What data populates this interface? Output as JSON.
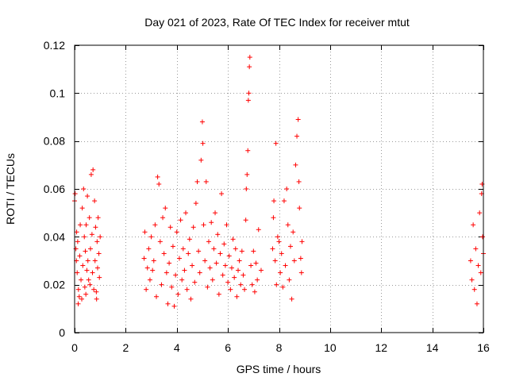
{
  "chart_data": {
    "type": "scatter",
    "title": "Day 021 of 2023, Rate Of TEC Index for receiver mtut",
    "xlabel": "GPS time / hours",
    "ylabel": "ROTI / TECUs",
    "xlim": [
      0,
      16
    ],
    "ylim": [
      0,
      0.12
    ],
    "grid": true,
    "marker": "+",
    "marker_color": "#ff0000",
    "x_ticks": [
      0,
      2,
      4,
      6,
      8,
      10,
      12,
      14,
      16
    ],
    "x_tick_labels": [
      "0",
      "2",
      "4",
      "6",
      "8",
      "10",
      "12",
      "14",
      "16"
    ],
    "y_ticks": [
      0,
      0.02,
      0.04,
      0.06,
      0.08,
      0.1,
      0.12
    ],
    "y_tick_labels": [
      "0",
      "0.02",
      "0.04",
      "0.06",
      "0.08",
      "0.1",
      "0.12"
    ],
    "series": [
      {
        "name": "ROTI",
        "points": [
          [
            0.0,
            0.055
          ],
          [
            0.02,
            0.058
          ],
          [
            0.05,
            0.035
          ],
          [
            0.07,
            0.03
          ],
          [
            0.08,
            0.042
          ],
          [
            0.1,
            0.025
          ],
          [
            0.12,
            0.038
          ],
          [
            0.15,
            0.018
          ],
          [
            0.18,
            0.015
          ],
          [
            0.2,
            0.032
          ],
          [
            0.22,
            0.045
          ],
          [
            0.25,
            0.022
          ],
          [
            0.28,
            0.014
          ],
          [
            0.3,
            0.052
          ],
          [
            0.32,
            0.028
          ],
          [
            0.35,
            0.06
          ],
          [
            0.38,
            0.04
          ],
          [
            0.4,
            0.019
          ],
          [
            0.42,
            0.034
          ],
          [
            0.45,
            0.045
          ],
          [
            0.48,
            0.026
          ],
          [
            0.5,
            0.057
          ],
          [
            0.52,
            0.03
          ],
          [
            0.55,
            0.022
          ],
          [
            0.58,
            0.048
          ],
          [
            0.6,
            0.02
          ],
          [
            0.62,
            0.035
          ],
          [
            0.65,
            0.066
          ],
          [
            0.68,
            0.041
          ],
          [
            0.7,
            0.025
          ],
          [
            0.72,
            0.068
          ],
          [
            0.75,
            0.018
          ],
          [
            0.78,
            0.055
          ],
          [
            0.8,
            0.03
          ],
          [
            0.82,
            0.044
          ],
          [
            0.85,
            0.017
          ],
          [
            0.88,
            0.038
          ],
          [
            0.9,
            0.027
          ],
          [
            0.92,
            0.048
          ],
          [
            0.95,
            0.033
          ],
          [
            0.97,
            0.023
          ],
          [
            1.0,
            0.04
          ],
          [
            0.14,
            0.012
          ],
          [
            0.44,
            0.016
          ],
          [
            0.86,
            0.014
          ],
          [
            2.72,
            0.031
          ],
          [
            2.75,
            0.042
          ],
          [
            2.8,
            0.018
          ],
          [
            2.85,
            0.027
          ],
          [
            2.9,
            0.035
          ],
          [
            2.95,
            0.022
          ],
          [
            3.0,
            0.04
          ],
          [
            3.05,
            0.026
          ],
          [
            3.1,
            0.03
          ],
          [
            3.15,
            0.045
          ],
          [
            3.2,
            0.015
          ],
          [
            3.25,
            0.065
          ],
          [
            3.3,
            0.062
          ],
          [
            3.35,
            0.038
          ],
          [
            3.4,
            0.02
          ],
          [
            3.45,
            0.048
          ],
          [
            3.5,
            0.033
          ],
          [
            3.55,
            0.052
          ],
          [
            3.6,
            0.025
          ],
          [
            3.65,
            0.012
          ],
          [
            3.7,
            0.029
          ],
          [
            3.75,
            0.044
          ],
          [
            3.8,
            0.019
          ],
          [
            3.85,
            0.036
          ],
          [
            3.9,
            0.011
          ],
          [
            3.95,
            0.024
          ],
          [
            4.0,
            0.042
          ],
          [
            4.05,
            0.016
          ],
          [
            4.1,
            0.031
          ],
          [
            4.15,
            0.047
          ],
          [
            4.2,
            0.022
          ],
          [
            4.25,
            0.035
          ],
          [
            4.3,
            0.026
          ],
          [
            4.35,
            0.05
          ],
          [
            4.4,
            0.018
          ],
          [
            4.45,
            0.033
          ],
          [
            4.5,
            0.039
          ],
          [
            4.55,
            0.014
          ],
          [
            4.6,
            0.028
          ],
          [
            4.65,
            0.044
          ],
          [
            4.7,
            0.021
          ],
          [
            4.75,
            0.054
          ],
          [
            4.8,
            0.063
          ],
          [
            4.85,
            0.034
          ],
          [
            4.9,
            0.025
          ],
          [
            4.95,
            0.072
          ],
          [
            5.0,
            0.088
          ],
          [
            5.02,
            0.079
          ],
          [
            5.05,
            0.045
          ],
          [
            5.1,
            0.03
          ],
          [
            5.15,
            0.063
          ],
          [
            5.2,
            0.019
          ],
          [
            5.25,
            0.038
          ],
          [
            5.3,
            0.027
          ],
          [
            5.35,
            0.046
          ],
          [
            5.4,
            0.022
          ],
          [
            5.45,
            0.035
          ],
          [
            5.5,
            0.05
          ],
          [
            5.55,
            0.029
          ],
          [
            5.6,
            0.041
          ],
          [
            5.65,
            0.016
          ],
          [
            5.7,
            0.033
          ],
          [
            5.75,
            0.058
          ],
          [
            5.8,
            0.024
          ],
          [
            5.85,
            0.037
          ],
          [
            5.9,
            0.028
          ],
          [
            5.95,
            0.045
          ],
          [
            6.0,
            0.021
          ],
          [
            6.05,
            0.032
          ],
          [
            6.1,
            0.018
          ],
          [
            6.15,
            0.027
          ],
          [
            6.2,
            0.039
          ],
          [
            6.25,
            0.023
          ],
          [
            6.3,
            0.035
          ],
          [
            6.35,
            0.015
          ],
          [
            6.4,
            0.026
          ],
          [
            6.45,
            0.03
          ],
          [
            6.5,
            0.02
          ],
          [
            6.55,
            0.034
          ],
          [
            6.6,
            0.024
          ],
          [
            6.65,
            0.018
          ],
          [
            6.7,
            0.047
          ],
          [
            6.72,
            0.06
          ],
          [
            6.75,
            0.066
          ],
          [
            6.78,
            0.076
          ],
          [
            6.8,
            0.097
          ],
          [
            6.82,
            0.1
          ],
          [
            6.84,
            0.111
          ],
          [
            6.86,
            0.115
          ],
          [
            6.9,
            0.028
          ],
          [
            6.95,
            0.02
          ],
          [
            7.0,
            0.034
          ],
          [
            7.05,
            0.017
          ],
          [
            7.1,
            0.029
          ],
          [
            7.15,
            0.022
          ],
          [
            7.2,
            0.043
          ],
          [
            7.3,
            0.026
          ],
          [
            7.75,
            0.035
          ],
          [
            7.78,
            0.048
          ],
          [
            7.8,
            0.055
          ],
          [
            7.85,
            0.03
          ],
          [
            7.88,
            0.079
          ],
          [
            7.9,
            0.02
          ],
          [
            7.95,
            0.04
          ],
          [
            8.0,
            0.038
          ],
          [
            8.05,
            0.025
          ],
          [
            8.1,
            0.033
          ],
          [
            8.15,
            0.019
          ],
          [
            8.2,
            0.055
          ],
          [
            8.25,
            0.028
          ],
          [
            8.3,
            0.06
          ],
          [
            8.35,
            0.045
          ],
          [
            8.4,
            0.022
          ],
          [
            8.45,
            0.036
          ],
          [
            8.5,
            0.014
          ],
          [
            8.55,
            0.042
          ],
          [
            8.6,
            0.03
          ],
          [
            8.65,
            0.07
          ],
          [
            8.7,
            0.082
          ],
          [
            8.75,
            0.089
          ],
          [
            8.78,
            0.063
          ],
          [
            8.8,
            0.052
          ],
          [
            8.85,
            0.031
          ],
          [
            8.88,
            0.025
          ],
          [
            8.9,
            0.038
          ],
          [
            15.5,
            0.03
          ],
          [
            15.55,
            0.022
          ],
          [
            15.6,
            0.045
          ],
          [
            15.65,
            0.018
          ],
          [
            15.7,
            0.035
          ],
          [
            15.75,
            0.012
          ],
          [
            15.8,
            0.028
          ],
          [
            15.85,
            0.05
          ],
          [
            15.9,
            0.025
          ],
          [
            15.93,
            0.058
          ],
          [
            15.95,
            0.062
          ],
          [
            15.97,
            0.04
          ],
          [
            16.0,
            0.033
          ]
        ]
      }
    ]
  }
}
